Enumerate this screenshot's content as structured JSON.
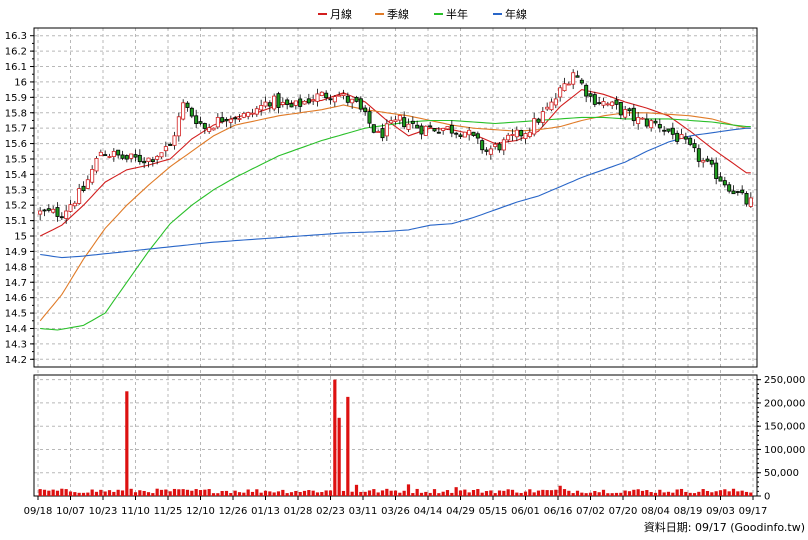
{
  "legend": [
    {
      "name": "月線",
      "color": "#d21e1e"
    },
    {
      "name": "季線",
      "color": "#e07b28"
    },
    {
      "name": "半年",
      "color": "#2ac02a"
    },
    {
      "name": "年線",
      "color": "#2966c8"
    }
  ],
  "source_label": "資料日期: 09/17  (Goodinfo.tw)",
  "colors": {
    "up": "#d21e1e",
    "down": "#1e9a1e",
    "volume": "#dd1111",
    "axis": "#000000",
    "grid": "#b8b8b8"
  },
  "chart_data": [
    {
      "type": "candlestick",
      "y_ticks": [
        "14.2",
        "14.3",
        "14.4",
        "14.5",
        "14.6",
        "14.7",
        "14.8",
        "14.9",
        "15",
        "15.1",
        "15.2",
        "15.3",
        "15.4",
        "15.5",
        "15.6",
        "15.7",
        "15.8",
        "15.9",
        "16",
        "16.1",
        "16.2",
        "16.3"
      ],
      "ylim": [
        14.15,
        16.35
      ],
      "x_tick_labels": [
        "09/18",
        "10/07",
        "10/23",
        "11/10",
        "11/25",
        "12/10",
        "12/26",
        "01/13",
        "01/28",
        "02/23",
        "03/11",
        "03/26",
        "04/14",
        "04/29",
        "05/15",
        "06/01",
        "06/16",
        "07/02",
        "07/20",
        "08/04",
        "08/19",
        "09/03",
        "09/17"
      ],
      "grid": true,
      "close_anchors": [
        [
          0,
          15.15
        ],
        [
          5,
          15.15
        ],
        [
          10,
          15.3
        ],
        [
          14,
          15.55
        ],
        [
          20,
          15.5
        ],
        [
          25,
          15.5
        ],
        [
          30,
          15.58
        ],
        [
          33,
          15.85
        ],
        [
          38,
          15.7
        ],
        [
          43,
          15.78
        ],
        [
          48,
          15.78
        ],
        [
          53,
          15.88
        ],
        [
          58,
          15.83
        ],
        [
          63,
          15.9
        ],
        [
          68,
          15.93
        ],
        [
          73,
          15.85
        ],
        [
          78,
          15.65
        ],
        [
          83,
          15.75
        ],
        [
          88,
          15.7
        ],
        [
          93,
          15.7
        ],
        [
          98,
          15.68
        ],
        [
          103,
          15.55
        ],
        [
          107,
          15.6
        ],
        [
          113,
          15.7
        ],
        [
          118,
          15.85
        ],
        [
          123,
          16.07
        ],
        [
          127,
          15.9
        ],
        [
          133,
          15.83
        ],
        [
          138,
          15.75
        ],
        [
          143,
          15.72
        ],
        [
          148,
          15.62
        ],
        [
          153,
          15.48
        ],
        [
          158,
          15.35
        ],
        [
          163,
          15.22
        ]
      ],
      "overlays": [
        {
          "name": "月線",
          "color": "#d21e1e",
          "anchors": [
            [
              0,
              15.0
            ],
            [
              5,
              15.07
            ],
            [
              10,
              15.2
            ],
            [
              15,
              15.35
            ],
            [
              20,
              15.43
            ],
            [
              25,
              15.46
            ],
            [
              30,
              15.5
            ],
            [
              35,
              15.63
            ],
            [
              40,
              15.72
            ],
            [
              45,
              15.77
            ],
            [
              50,
              15.8
            ],
            [
              55,
              15.85
            ],
            [
              60,
              15.87
            ],
            [
              65,
              15.88
            ],
            [
              70,
              15.93
            ],
            [
              75,
              15.87
            ],
            [
              80,
              15.75
            ],
            [
              85,
              15.65
            ],
            [
              90,
              15.7
            ],
            [
              95,
              15.69
            ],
            [
              100,
              15.66
            ],
            [
              105,
              15.6
            ],
            [
              110,
              15.62
            ],
            [
              115,
              15.68
            ],
            [
              120,
              15.84
            ],
            [
              125,
              15.95
            ],
            [
              130,
              15.92
            ],
            [
              135,
              15.87
            ],
            [
              140,
              15.83
            ],
            [
              145,
              15.78
            ],
            [
              150,
              15.68
            ],
            [
              155,
              15.57
            ],
            [
              160,
              15.47
            ],
            [
              163,
              15.41
            ]
          ]
        },
        {
          "name": "季線",
          "color": "#e07b28",
          "anchors": [
            [
              0,
              14.45
            ],
            [
              5,
              14.62
            ],
            [
              10,
              14.85
            ],
            [
              15,
              15.05
            ],
            [
              20,
              15.2
            ],
            [
              25,
              15.33
            ],
            [
              30,
              15.45
            ],
            [
              35,
              15.55
            ],
            [
              40,
              15.65
            ],
            [
              45,
              15.72
            ],
            [
              50,
              15.75
            ],
            [
              55,
              15.78
            ],
            [
              60,
              15.8
            ],
            [
              65,
              15.82
            ],
            [
              70,
              15.85
            ],
            [
              75,
              15.82
            ],
            [
              80,
              15.8
            ],
            [
              85,
              15.78
            ],
            [
              90,
              15.75
            ],
            [
              95,
              15.72
            ],
            [
              100,
              15.7
            ],
            [
              105,
              15.69
            ],
            [
              110,
              15.68
            ],
            [
              115,
              15.69
            ],
            [
              120,
              15.71
            ],
            [
              125,
              15.75
            ],
            [
              130,
              15.78
            ],
            [
              135,
              15.8
            ],
            [
              140,
              15.8
            ],
            [
              145,
              15.79
            ],
            [
              150,
              15.78
            ],
            [
              155,
              15.76
            ],
            [
              160,
              15.72
            ],
            [
              163,
              15.7
            ]
          ]
        },
        {
          "name": "半年",
          "color": "#2ac02a",
          "anchors": [
            [
              0,
              14.4
            ],
            [
              4,
              14.39
            ],
            [
              10,
              14.42
            ],
            [
              15,
              14.5
            ],
            [
              20,
              14.7
            ],
            [
              25,
              14.9
            ],
            [
              30,
              15.08
            ],
            [
              35,
              15.2
            ],
            [
              40,
              15.3
            ],
            [
              45,
              15.38
            ],
            [
              50,
              15.45
            ],
            [
              55,
              15.52
            ],
            [
              60,
              15.57
            ],
            [
              65,
              15.62
            ],
            [
              70,
              15.66
            ],
            [
              75,
              15.7
            ],
            [
              80,
              15.72
            ],
            [
              85,
              15.74
            ],
            [
              90,
              15.75
            ],
            [
              95,
              15.75
            ],
            [
              100,
              15.74
            ],
            [
              105,
              15.73
            ],
            [
              110,
              15.74
            ],
            [
              115,
              15.75
            ],
            [
              120,
              15.76
            ],
            [
              125,
              15.77
            ],
            [
              130,
              15.77
            ],
            [
              135,
              15.76
            ],
            [
              140,
              15.76
            ],
            [
              145,
              15.76
            ],
            [
              150,
              15.75
            ],
            [
              155,
              15.74
            ],
            [
              160,
              15.72
            ],
            [
              163,
              15.71
            ]
          ]
        },
        {
          "name": "年線",
          "color": "#2966c8",
          "anchors": [
            [
              0,
              14.88
            ],
            [
              5,
              14.86
            ],
            [
              10,
              14.87
            ],
            [
              20,
              14.9
            ],
            [
              30,
              14.93
            ],
            [
              40,
              14.96
            ],
            [
              50,
              14.98
            ],
            [
              60,
              15.0
            ],
            [
              70,
              15.02
            ],
            [
              80,
              15.03
            ],
            [
              85,
              15.04
            ],
            [
              90,
              15.07
            ],
            [
              95,
              15.08
            ],
            [
              100,
              15.12
            ],
            [
              105,
              15.17
            ],
            [
              110,
              15.22
            ],
            [
              115,
              15.26
            ],
            [
              120,
              15.32
            ],
            [
              125,
              15.38
            ],
            [
              130,
              15.43
            ],
            [
              135,
              15.48
            ],
            [
              140,
              15.55
            ],
            [
              145,
              15.61
            ],
            [
              150,
              15.65
            ],
            [
              155,
              15.67
            ],
            [
              160,
              15.69
            ],
            [
              163,
              15.7
            ]
          ]
        }
      ]
    },
    {
      "type": "bar",
      "series": [
        {
          "name": "volume",
          "color": "#dd1111"
        }
      ],
      "y_ticks": [
        "0",
        "50,000",
        "100,000",
        "150,000",
        "200,000",
        "250,000"
      ],
      "ylim": [
        0,
        260000
      ],
      "baseline_range": [
        6000,
        16000
      ],
      "spikes": [
        [
          20,
          225000
        ],
        [
          68,
          250000
        ],
        [
          69,
          168000
        ],
        [
          71,
          213000
        ],
        [
          73,
          24000
        ],
        [
          85,
          25000
        ],
        [
          96,
          19000
        ],
        [
          120,
          22000
        ]
      ]
    }
  ]
}
